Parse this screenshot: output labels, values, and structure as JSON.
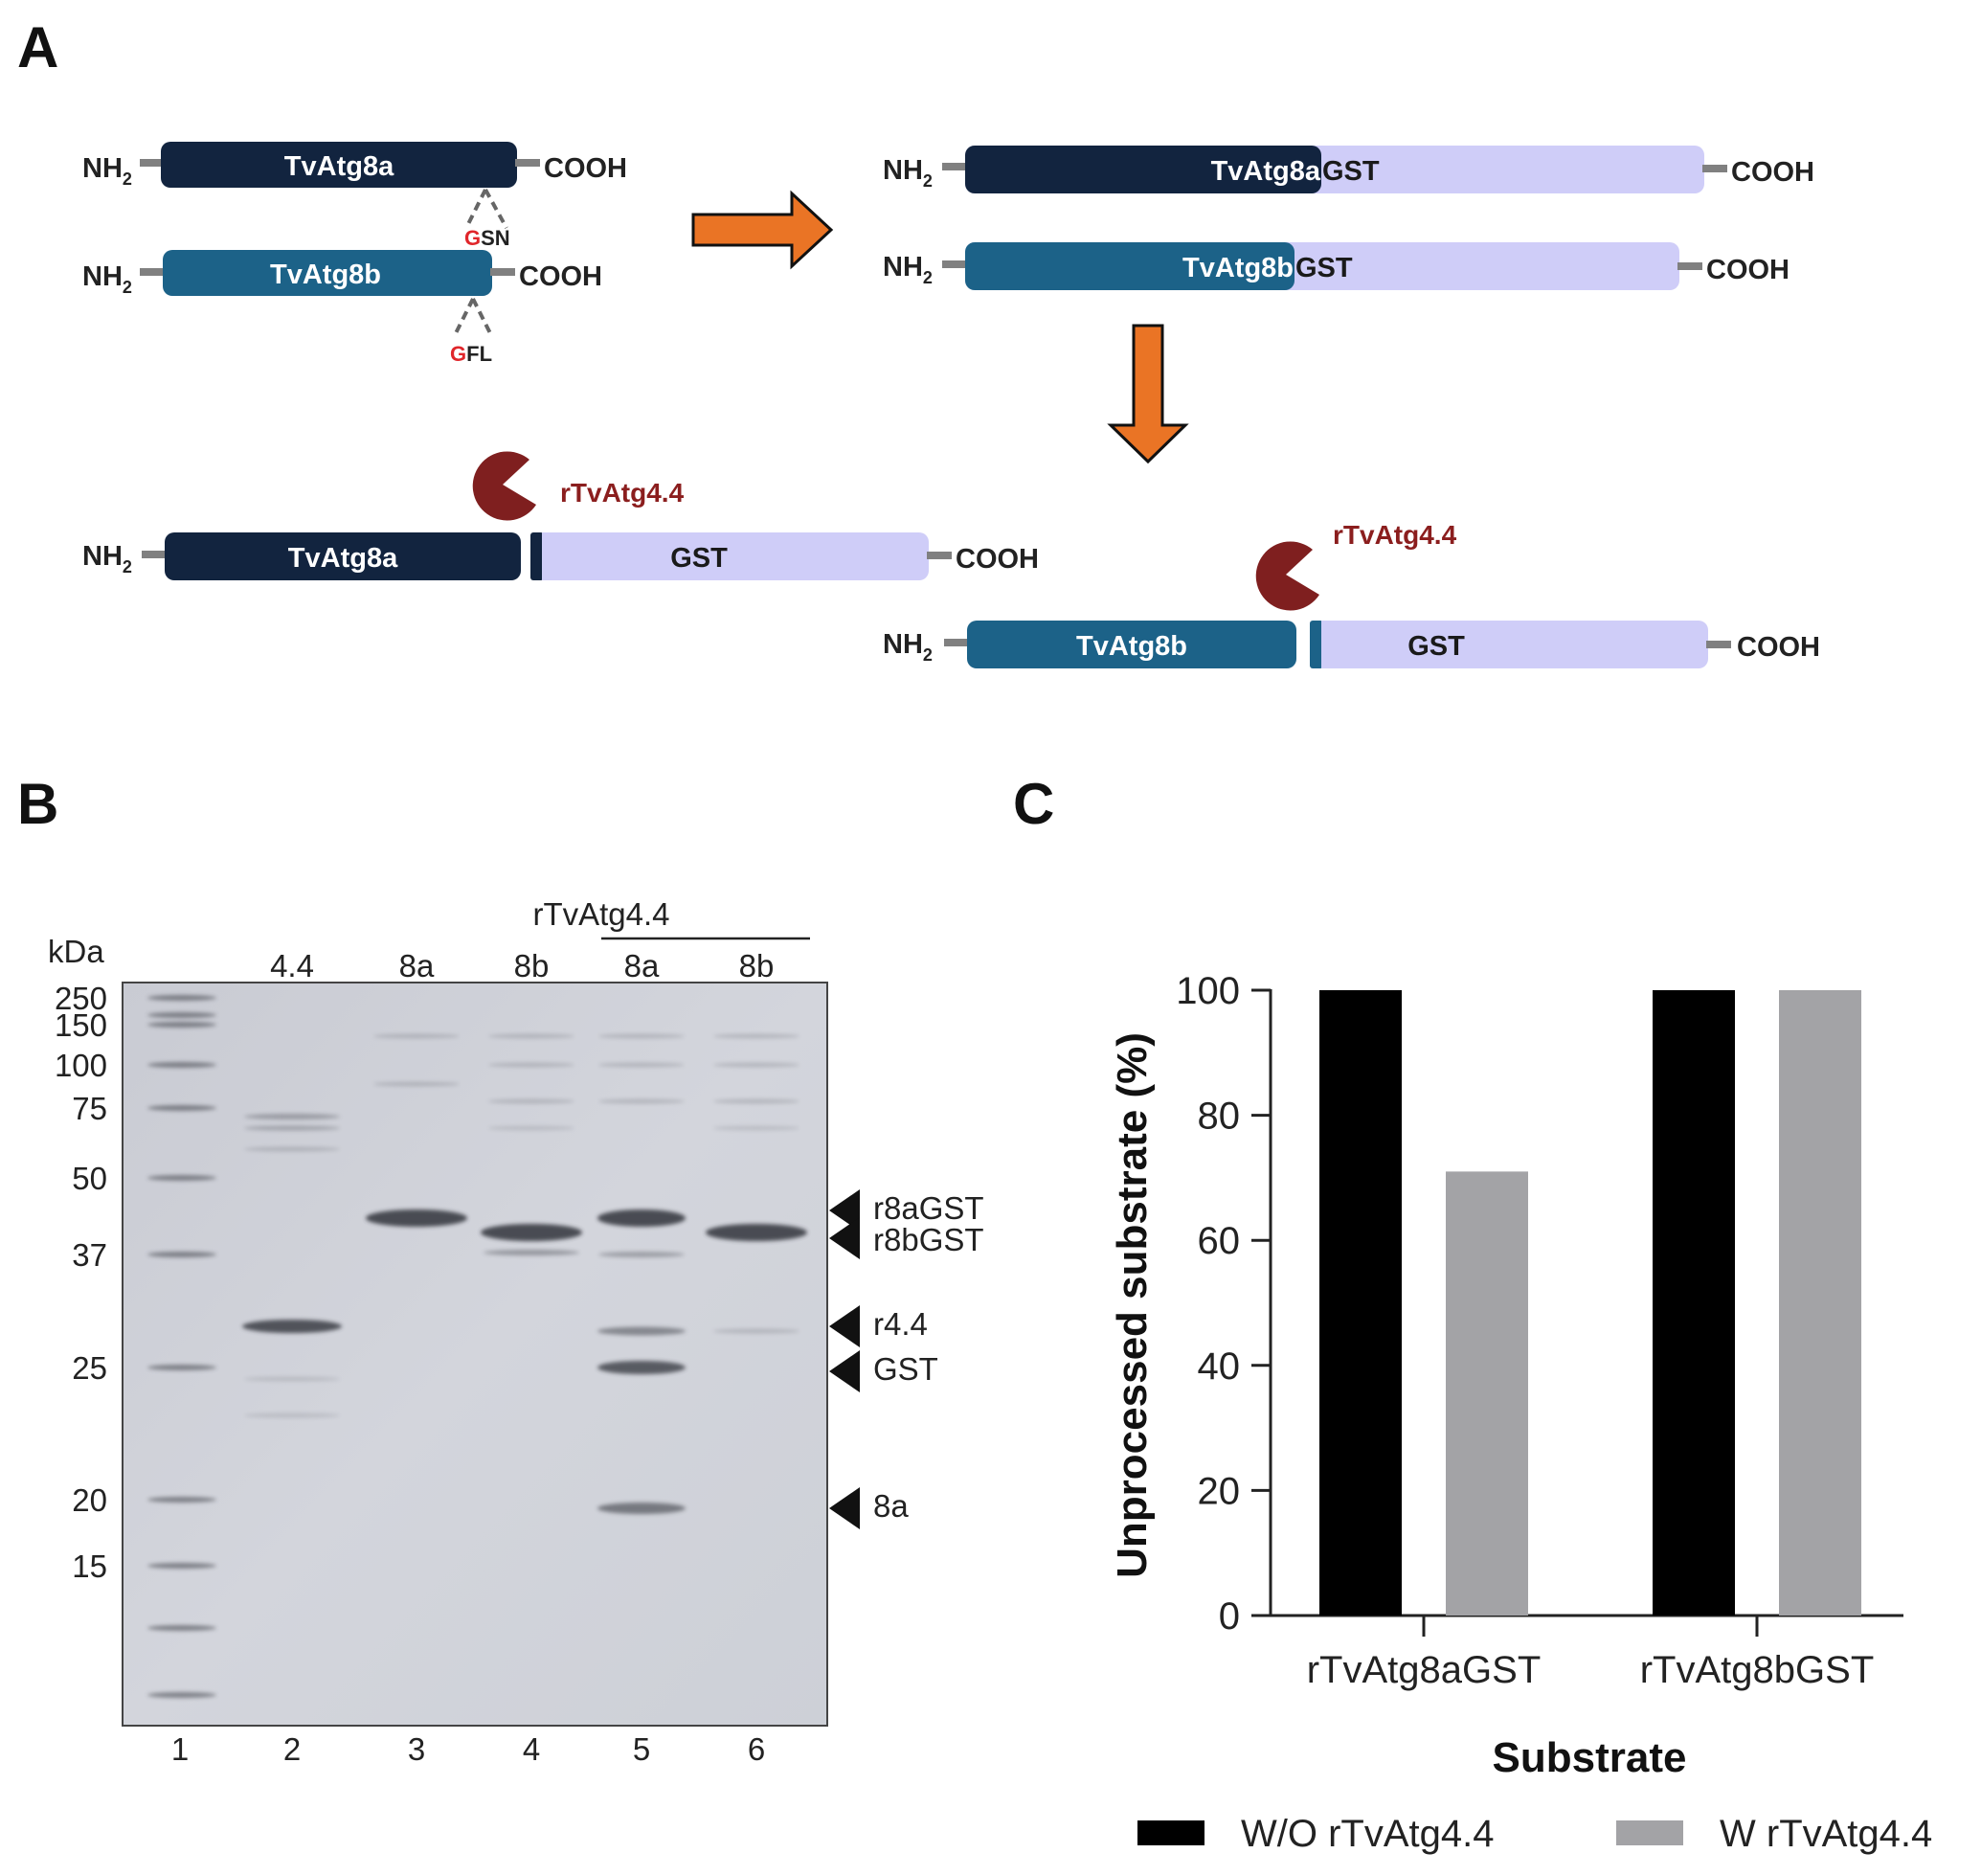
{
  "panels": {
    "a": "A",
    "b": "B",
    "c": "C"
  },
  "colors": {
    "atg8a": "#12243f",
    "atg8b": "#1c6288",
    "gst": "#cfcdf8",
    "enzyme": "#7f1f1f",
    "arrow": "#ea7425",
    "linker": "#808080"
  },
  "diagram": {
    "nh2_main": "NH",
    "nh2_sub": "2",
    "cooh": "COOH",
    "atg8a": "TvAtg8a",
    "atg8b": "TvAtg8b",
    "fusion_a_left": "TvAtg8a",
    "fusion_a_right": "GST",
    "fusion_b_left": "TvAtg8b",
    "fusion_b_right": "GST",
    "gst": "GST",
    "site_a_g": "G",
    "site_a_rest": "SN",
    "site_b_g": "G",
    "site_b_rest": "FL",
    "enzyme": "rTvAtg4.4"
  },
  "gel": {
    "kda_label": "kDa",
    "markers": [
      "250",
      "150",
      "100",
      "75",
      "50",
      "37",
      "25",
      "20",
      "15"
    ],
    "treatment_label": "rTvAtg4.4",
    "lane_headers": [
      "4.4",
      "8a",
      "8b",
      "8a",
      "8b"
    ],
    "lane_numbers": [
      "1",
      "2",
      "3",
      "4",
      "5",
      "6"
    ],
    "band_labels": [
      "r8aGST",
      "r8bGST",
      "r4.4",
      "GST",
      "8a"
    ]
  },
  "chart_data": {
    "type": "bar",
    "categories": [
      "rTvAtg8aGST",
      "rTvAtg8bGST"
    ],
    "series": [
      {
        "name": "W/O rTvAtg4.4",
        "values": [
          100,
          100
        ],
        "color": "#000000"
      },
      {
        "name": "W rTvAtg4.4",
        "values": [
          71,
          100
        ],
        "color": "#a3a3a6"
      }
    ],
    "ylabel": "Unprocessed substrate (%)",
    "xlabel": "Substrate",
    "ylim": [
      0,
      100
    ],
    "yticks": [
      0,
      20,
      40,
      60,
      80,
      100
    ],
    "legend_position": "bottom"
  }
}
